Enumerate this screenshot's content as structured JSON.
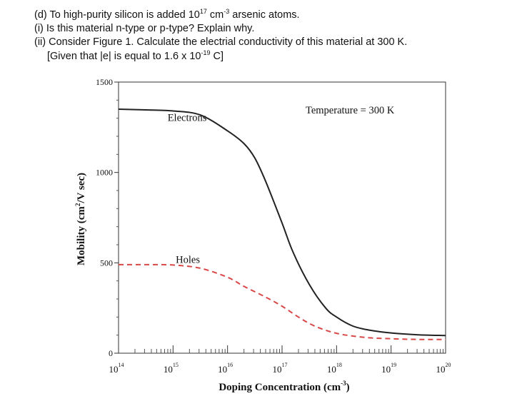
{
  "question": {
    "line_d": {
      "pre": "(d) To high-purity silicon is added 10",
      "exp": "17",
      "mid": " cm",
      "exp2": "-3",
      "post": " arsenic atoms."
    },
    "line_i": "(i) Is this material n-type or p-type? Explain why.",
    "line_ii": "(ii) Consider Figure 1. Calculate the electrial conductivity of this material at 300 K.",
    "line_given": {
      "pre": "[Given that |e| is equal to 1.6 x 10",
      "exp": "-19",
      "post": " C]"
    }
  },
  "chart_data": {
    "type": "line",
    "x_scale": "log",
    "xlim": [
      100000000000000.0,
      1e+20
    ],
    "ylim": [
      0,
      1500
    ],
    "ylabel": {
      "pre": "Mobility (cm",
      "exp": "2",
      "post": "/V sec)"
    },
    "xlabel": {
      "pre": "Doping Concentration (cm",
      "exp": "-3",
      "post": ")"
    },
    "annotation": "Temperature = 300 K",
    "y_ticks": [
      {
        "value": 0,
        "label": "0"
      },
      {
        "value": 500,
        "label": "500"
      },
      {
        "value": 1000,
        "label": "1000"
      },
      {
        "value": 1500,
        "label": "1500"
      }
    ],
    "x_ticks": [
      {
        "exp": 14,
        "base": "10",
        "sup": "14"
      },
      {
        "exp": 15,
        "base": "10",
        "sup": "15"
      },
      {
        "exp": 16,
        "base": "10",
        "sup": "16"
      },
      {
        "exp": 17,
        "base": "10",
        "sup": "17"
      },
      {
        "exp": 18,
        "base": "10",
        "sup": "18"
      },
      {
        "exp": 19,
        "base": "10",
        "sup": "19"
      },
      {
        "exp": 20,
        "base": "10",
        "sup": "20"
      }
    ],
    "series": [
      {
        "name": "Electrons",
        "color": "#222222",
        "style": "solid",
        "points": [
          [
            14,
            1350
          ],
          [
            14.5,
            1346
          ],
          [
            15,
            1340
          ],
          [
            15.5,
            1318
          ],
          [
            16,
            1230
          ],
          [
            16.3,
            1160
          ],
          [
            16.5,
            1080
          ],
          [
            16.7,
            950
          ],
          [
            17,
            720
          ],
          [
            17.2,
            560
          ],
          [
            17.5,
            380
          ],
          [
            17.8,
            250
          ],
          [
            18,
            200
          ],
          [
            18.3,
            150
          ],
          [
            18.6,
            128
          ],
          [
            19,
            112
          ],
          [
            19.5,
            102
          ],
          [
            20,
            98
          ]
        ]
      },
      {
        "name": "Holes",
        "color": "#d94848",
        "style": "dashed",
        "points": [
          [
            14,
            490
          ],
          [
            14.5,
            490
          ],
          [
            15,
            488
          ],
          [
            15.5,
            470
          ],
          [
            16,
            420
          ],
          [
            16.3,
            370
          ],
          [
            16.7,
            310
          ],
          [
            17,
            260
          ],
          [
            17.3,
            200
          ],
          [
            17.6,
            150
          ],
          [
            18,
            110
          ],
          [
            18.5,
            88
          ],
          [
            19,
            80
          ],
          [
            19.5,
            76
          ],
          [
            20,
            76
          ]
        ]
      }
    ],
    "series_labels": [
      {
        "name": "Electrons",
        "text": "Electrons",
        "at": [
          14.9,
          1285
        ]
      },
      {
        "name": "Holes",
        "text": "Holes",
        "at": [
          15.05,
          500
        ]
      }
    ]
  }
}
